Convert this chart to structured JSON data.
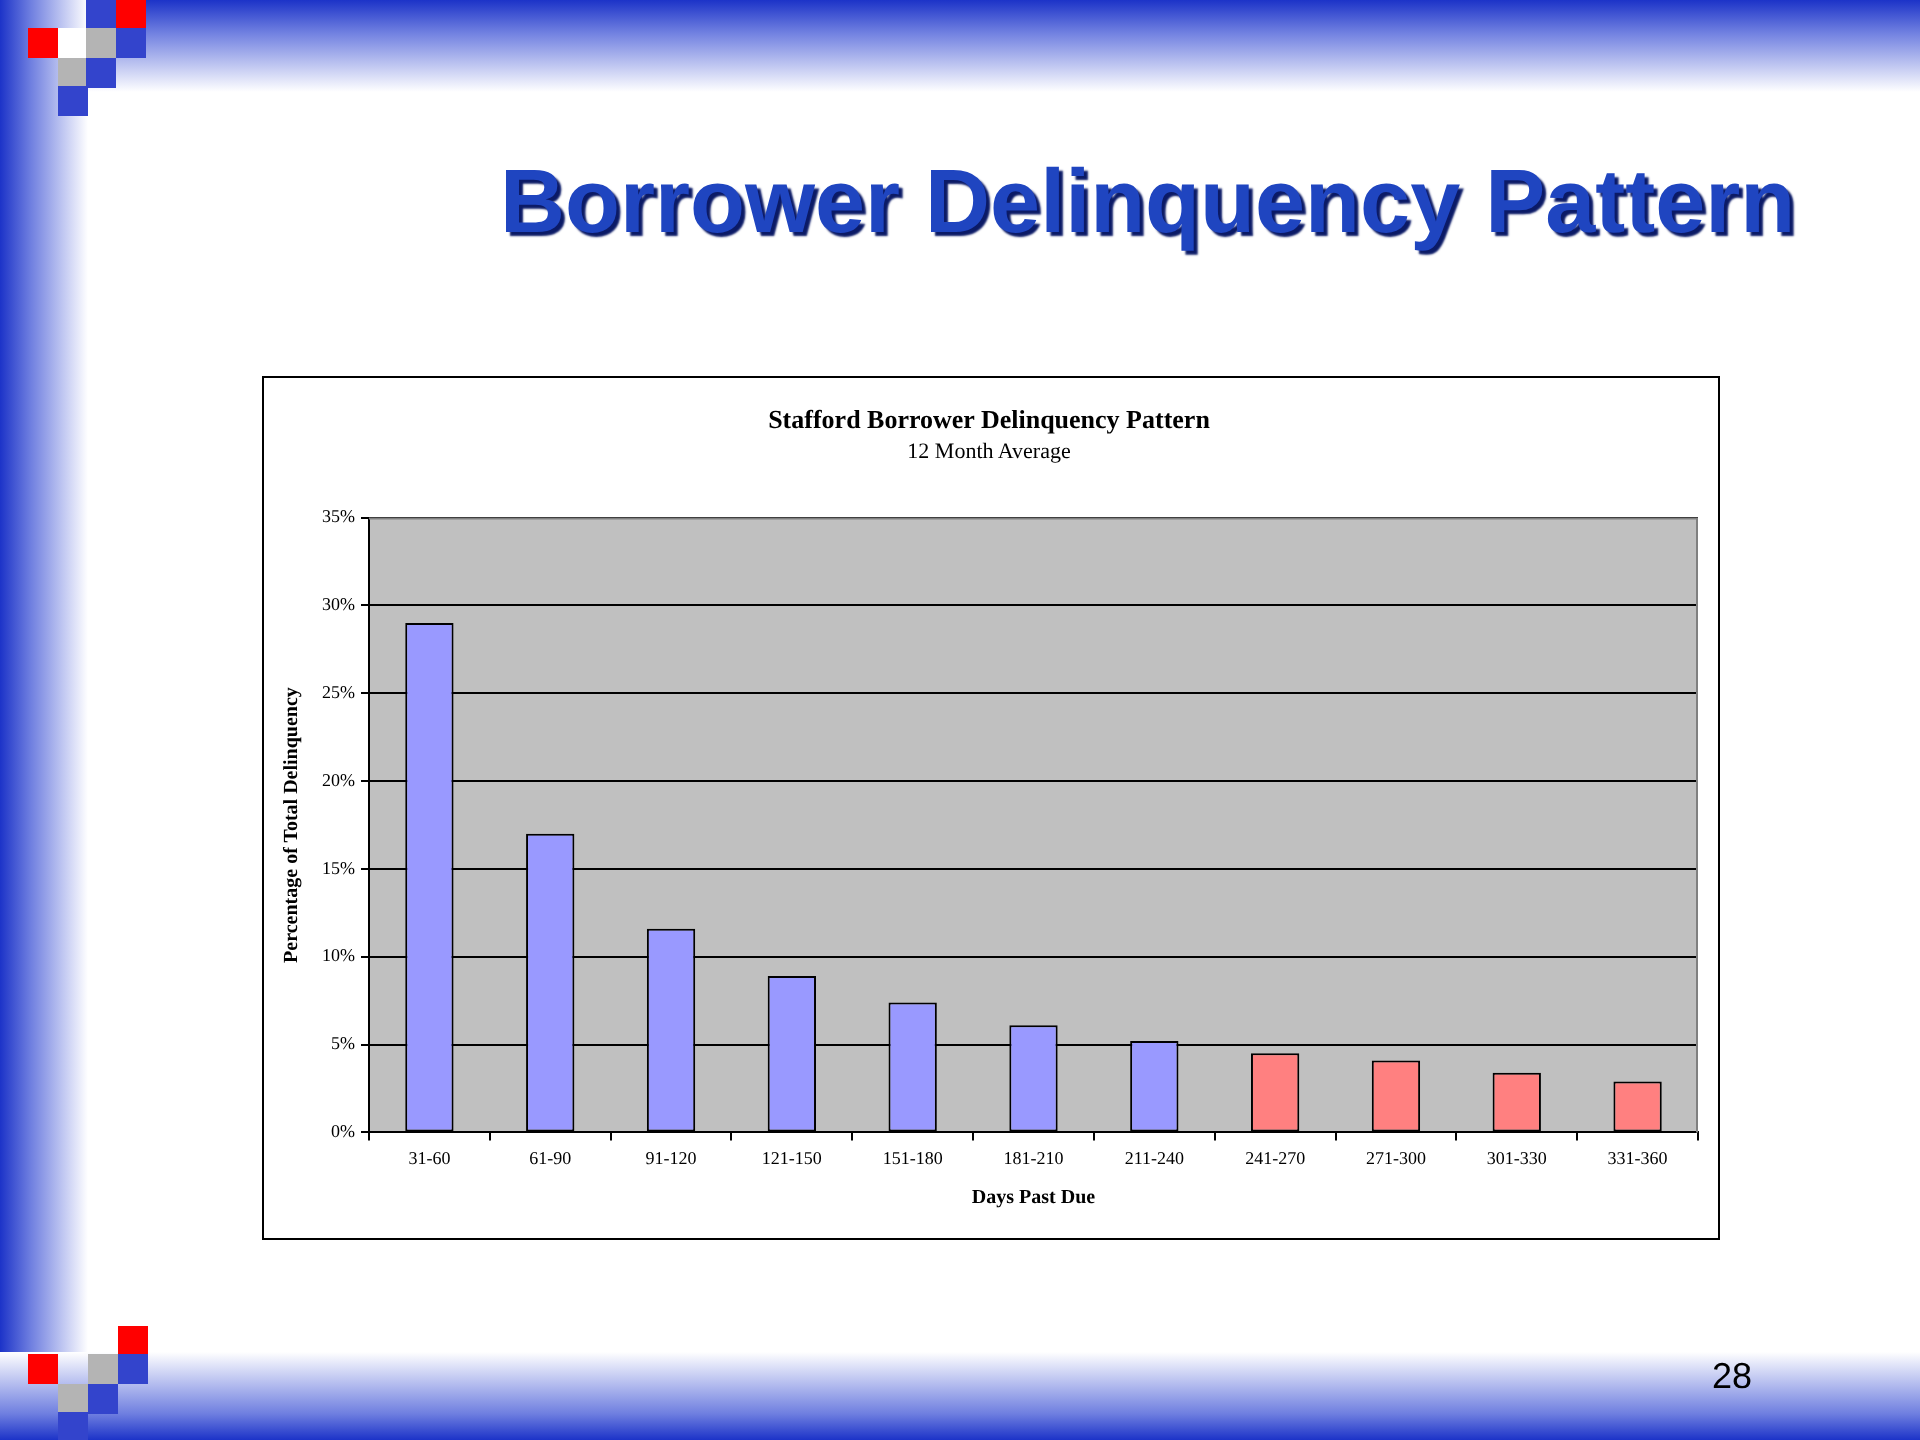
{
  "chart_data": {
    "type": "bar",
    "title": "Stafford Borrower Delinquency Pattern",
    "subtitle": "12 Month Average",
    "xlabel": "Days Past Due",
    "ylabel": "Percentage of Total Delinquency",
    "categories": [
      "31-60",
      "61-90",
      "91-120",
      "121-150",
      "151-180",
      "181-210",
      "211-240",
      "241-270",
      "271-300",
      "301-330",
      "331-360"
    ],
    "values": [
      29,
      17,
      11.6,
      8.9,
      7.4,
      6.1,
      5.2,
      4.5,
      4.1,
      3.4,
      2.9
    ],
    "colors": [
      "#9999ff",
      "#9999ff",
      "#9999ff",
      "#9999ff",
      "#9999ff",
      "#9999ff",
      "#9999ff",
      "#ff8080",
      "#ff8080",
      "#ff8080",
      "#ff8080"
    ],
    "ylim": [
      0,
      35
    ],
    "yticks": [
      {
        "value": 0,
        "label": "0%"
      },
      {
        "value": 5,
        "label": "5%"
      },
      {
        "value": 10,
        "label": "10%"
      },
      {
        "value": 15,
        "label": "15%"
      },
      {
        "value": 20,
        "label": "20%"
      },
      {
        "value": 25,
        "label": "25%"
      },
      {
        "value": 30,
        "label": "30%"
      },
      {
        "value": 35,
        "label": "35%"
      }
    ],
    "grid": "y",
    "legend": false,
    "annotations": [
      "Borrower Delinquency Pattern",
      "28"
    ]
  }
}
